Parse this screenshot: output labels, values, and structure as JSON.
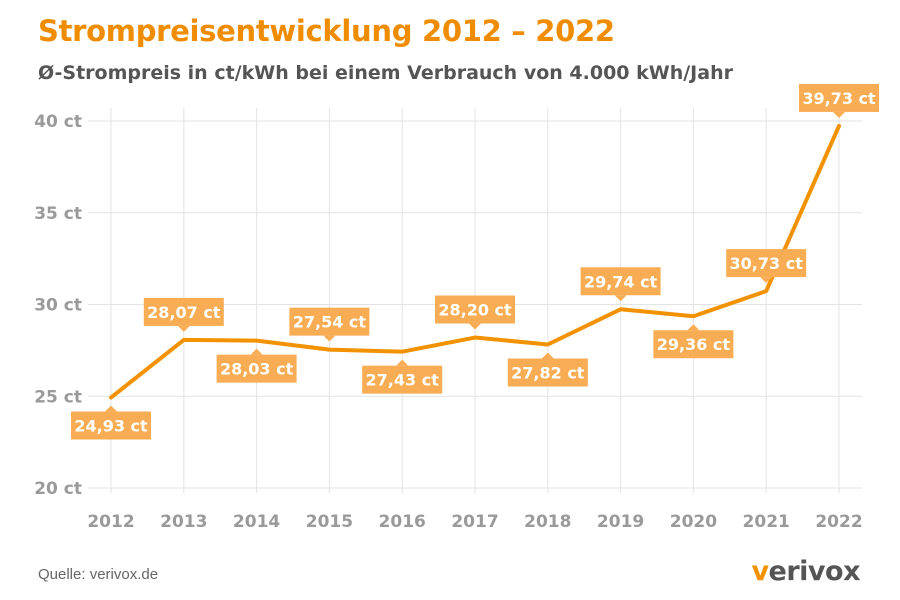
{
  "title": "Strompreisentwicklung 2012 – 2022",
  "subtitle": "Ø-Strompreis in ct/kWh bei einem Verbrauch von 4.000 kWh/Jahr",
  "source": "Quelle: verivox.de",
  "logo": {
    "text": "verivox",
    "first_letter": "v",
    "rest": "erivox"
  },
  "colors": {
    "line": "#f39200",
    "label_bg": "#f8ad55",
    "grid": "#e3e3e3",
    "axis_text": "#9a9a9a",
    "title": "#f08c00"
  },
  "chart_data": {
    "type": "line",
    "categories": [
      "2012",
      "2013",
      "2014",
      "2015",
      "2016",
      "2017",
      "2018",
      "2019",
      "2020",
      "2021",
      "2022"
    ],
    "series": [
      {
        "values": [
          24.93,
          28.07,
          28.03,
          27.54,
          27.43,
          28.2,
          27.82,
          29.74,
          29.36,
          30.73,
          39.73
        ],
        "labels": [
          "24,93 ct",
          "28,07 ct",
          "28,03 ct",
          "27,54 ct",
          "27,43 ct",
          "28,20 ct",
          "27,82 ct",
          "29,74 ct",
          "29,36 ct",
          "30,73 ct",
          "39,73 ct"
        ],
        "label_position": [
          "below",
          "above",
          "below",
          "above",
          "below",
          "above",
          "below",
          "above",
          "below",
          "above",
          "above"
        ]
      }
    ],
    "yticks": [
      20,
      25,
      30,
      35,
      40
    ],
    "ytick_labels": [
      "20 ct",
      "25 ct",
      "30 ct",
      "35 ct",
      "40 ct"
    ],
    "ylim": [
      20,
      40
    ],
    "grid": true,
    "xlabel": "",
    "ylabel": ""
  }
}
